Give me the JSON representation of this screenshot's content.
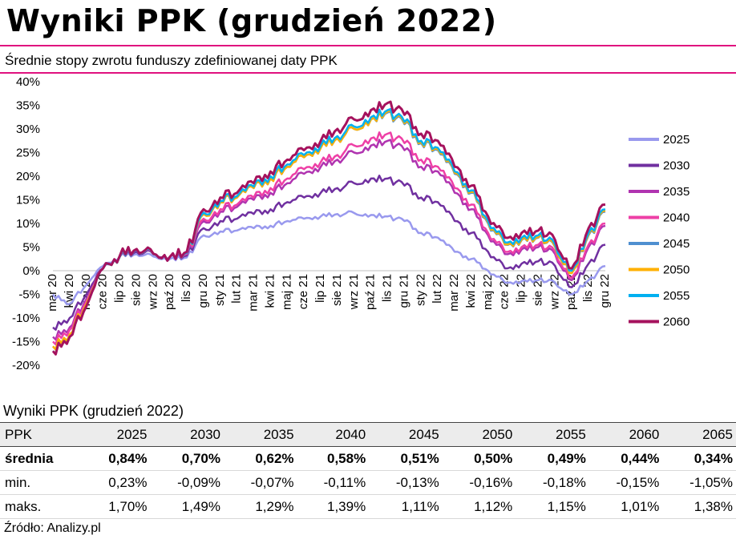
{
  "header": {
    "title": "Wyniki PPK (grudzień 2022)",
    "subtitle": "Średnie stopy zwrotu funduszy zdefiniowanej daty PPK"
  },
  "colors": {
    "accent_rule": "#e0117f",
    "table_header_bg": "#ececec"
  },
  "chart_data": {
    "type": "line",
    "title": "",
    "ylabel": "",
    "xlabel": "",
    "ylim": [
      -20,
      40
    ],
    "yticks": [
      "40%",
      "35%",
      "30%",
      "25%",
      "20%",
      "15%",
      "10%",
      "5%",
      "0%",
      "-5%",
      "-10%",
      "-15%",
      "-20%"
    ],
    "ytick_values": [
      40,
      35,
      30,
      25,
      20,
      15,
      10,
      5,
      0,
      -5,
      -10,
      -15,
      -20
    ],
    "categories": [
      "mar 20",
      "kwi 20",
      "maj 20",
      "cze 20",
      "lip 20",
      "sie 20",
      "wrz 20",
      "paź 20",
      "lis 20",
      "gru 20",
      "sty 21",
      "lut 21",
      "mar 21",
      "kwi 21",
      "maj 21",
      "cze 21",
      "lip 21",
      "sie 21",
      "wrz 21",
      "paź 21",
      "lis 21",
      "gru 21",
      "sty 22",
      "lut 22",
      "mar 22",
      "kwi 22",
      "maj 22",
      "cze 22",
      "lip 22",
      "sie 22",
      "wrz 22",
      "paź 22",
      "lis 22",
      "gru 22"
    ],
    "grid": false,
    "legend_position": "right",
    "series": [
      {
        "name": "2025",
        "color": "#9999ee",
        "values": [
          -5,
          -7,
          -3,
          1,
          3,
          3.5,
          3,
          2.5,
          2.8,
          7.5,
          8.3,
          8.5,
          9,
          9.5,
          10.5,
          11,
          11.5,
          12,
          12.2,
          11.8,
          11.5,
          10.5,
          8,
          7,
          4,
          2.5,
          0,
          -2.5,
          -2.2,
          -2,
          -2.5,
          -5,
          -2,
          1
        ]
      },
      {
        "name": "2030",
        "color": "#7030a0",
        "values": [
          -12,
          -10,
          -5,
          0.5,
          3,
          4,
          3.5,
          3,
          3.2,
          9,
          10.5,
          11,
          12,
          13,
          14.5,
          15.5,
          16.5,
          17.5,
          18.5,
          19.5,
          19.5,
          18,
          15.5,
          14.5,
          10.5,
          8,
          4,
          0.5,
          1.5,
          2,
          1,
          -3.5,
          1.5,
          5.5
        ]
      },
      {
        "name": "2035",
        "color": "#b034b0",
        "values": [
          -14,
          -12,
          -6,
          0.5,
          3,
          4.5,
          3.5,
          3,
          3.5,
          10.5,
          12.5,
          13.5,
          15,
          16.5,
          18.5,
          20.5,
          22,
          23.5,
          25,
          26.5,
          27.5,
          25.5,
          22,
          21,
          16.5,
          13,
          7.5,
          3.5,
          4.5,
          5,
          3.5,
          -2,
          5,
          9.5
        ]
      },
      {
        "name": "2040",
        "color": "#ee3fa6",
        "values": [
          -15,
          -12.5,
          -6.5,
          0.5,
          3,
          4.5,
          3.5,
          3,
          3.6,
          11,
          13,
          14,
          15.5,
          17.5,
          19.5,
          21.5,
          23,
          24.5,
          26.5,
          28,
          29,
          27,
          23.5,
          22,
          17.5,
          14,
          8,
          4,
          5,
          5.5,
          4,
          -1.5,
          5.5,
          10
        ]
      },
      {
        "name": "2045",
        "color": "#4f8fd0",
        "values": [
          -16,
          -13.5,
          -7,
          0.5,
          3,
          4.5,
          3.5,
          3,
          3.8,
          12,
          14.5,
          15.5,
          17.5,
          19.5,
          22,
          24,
          26,
          28,
          30,
          32,
          33.5,
          31,
          27,
          25.5,
          20.5,
          16.5,
          10,
          5.5,
          6.5,
          7,
          5,
          -0.5,
          7.5,
          12.5
        ]
      },
      {
        "name": "2050",
        "color": "#ffb000",
        "values": [
          -16,
          -13.5,
          -7,
          0.5,
          3,
          4.5,
          3.5,
          3,
          3.8,
          12,
          14.5,
          15.5,
          17.5,
          19.5,
          22,
          24,
          26,
          28,
          30,
          32,
          33.7,
          31.2,
          27.2,
          25.7,
          20.7,
          16.7,
          10.2,
          5.6,
          6.6,
          7.1,
          5.1,
          -0.5,
          7.7,
          12.7
        ]
      },
      {
        "name": "2055",
        "color": "#00b0f0",
        "values": [
          -17,
          -14,
          -7.5,
          0.5,
          3,
          4.5,
          3.5,
          3,
          3.8,
          12.3,
          14.8,
          15.8,
          17.8,
          20,
          22.5,
          24.5,
          26.5,
          28.5,
          30.5,
          32.5,
          34,
          31.5,
          27.5,
          26,
          21,
          17,
          10.5,
          6,
          7,
          7.5,
          5.5,
          0,
          8,
          13
        ]
      },
      {
        "name": "2060",
        "color": "#a5125d",
        "values": [
          -17,
          -14,
          -7.5,
          0.5,
          3.2,
          4.6,
          3.6,
          3,
          4,
          13,
          15.5,
          16.5,
          18.5,
          21,
          23.5,
          25.5,
          27.5,
          30,
          32,
          34,
          35.5,
          33,
          29,
          27.5,
          22,
          18,
          11.5,
          7,
          8,
          8.5,
          6.5,
          0.5,
          9,
          14
        ]
      }
    ]
  },
  "table": {
    "title": "Wyniki PPK (grudzień 2022)",
    "headers": [
      "PPK",
      "2025",
      "2030",
      "2035",
      "2040",
      "2045",
      "2050",
      "2055",
      "2060",
      "2065"
    ],
    "rows": [
      {
        "label": "średnia",
        "values": [
          "0,84%",
          "0,70%",
          "0,62%",
          "0,58%",
          "0,51%",
          "0,50%",
          "0,49%",
          "0,44%",
          "0,34%"
        ]
      },
      {
        "label": "min.",
        "values": [
          "0,23%",
          "-0,09%",
          "-0,07%",
          "-0,11%",
          "-0,13%",
          "-0,16%",
          "-0,18%",
          "-0,15%",
          "-1,05%"
        ]
      },
      {
        "label": "maks.",
        "values": [
          "1,70%",
          "1,49%",
          "1,29%",
          "1,39%",
          "1,11%",
          "1,12%",
          "1,15%",
          "1,01%",
          "1,38%"
        ]
      }
    ]
  },
  "footer": {
    "source": "Źródło: Analizy.pl"
  }
}
